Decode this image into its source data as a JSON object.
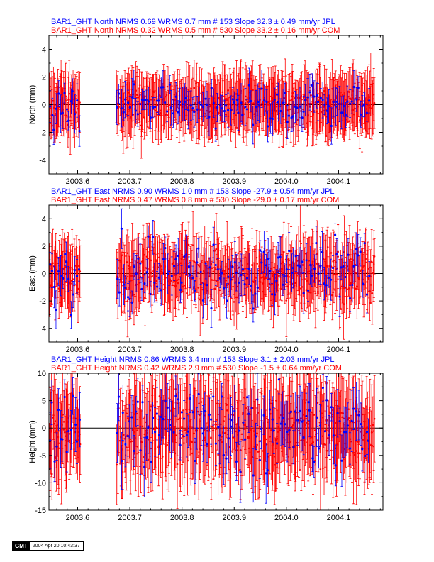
{
  "colors": {
    "jpl": "#0000ff",
    "com": "#ff0000",
    "axis": "#000000"
  },
  "stamp": {
    "logo": "GMT",
    "time": "2004 Apr 20 10:43:37"
  },
  "chart_data": [
    {
      "type": "scatter",
      "component": "north",
      "xlabel": "",
      "ylabel": "North (mm)",
      "xlim": [
        2003.545,
        2004.185
      ],
      "ylim": [
        -5,
        5
      ],
      "xticks": [
        2003.6,
        2003.7,
        2003.8,
        2003.9,
        2004.0,
        2004.1
      ],
      "xtick_labels": [
        "2003.6",
        "2003.7",
        "2003.8",
        "2003.9",
        "2004.0",
        "2004.1"
      ],
      "yticks": [
        -4,
        -2,
        0,
        2,
        4
      ],
      "ytick_labels": [
        "-4",
        "-2",
        "0",
        "2",
        "4"
      ],
      "titles": [
        {
          "text": "BAR1_GHT North NRMS 0.69 WRMS  0.7 mm # 153 Slope   32.3 ±  0.49 mm/yr JPL",
          "color": "#0000ff"
        },
        {
          "text": "BAR1_GHT North NRMS 0.32 WRMS  0.5 mm # 530 Slope   33.2 ±  0.16 mm/yr COM",
          "color": "#ff0000"
        }
      ],
      "series": [
        {
          "name": "JPL",
          "color": "#0000ff",
          "count": 153,
          "wrms": 0.7,
          "err": 1.0,
          "x_start": 2003.545,
          "x_end": 2004.16,
          "gaps": [
            [
              2003.605,
              2003.675
            ]
          ]
        },
        {
          "name": "COM",
          "color": "#ff0000",
          "count": 530,
          "wrms": 0.5,
          "err": 1.8,
          "x_start": 2003.545,
          "x_end": 2004.17,
          "gaps": [
            [
              2003.605,
              2003.675
            ]
          ]
        }
      ]
    },
    {
      "type": "scatter",
      "component": "east",
      "xlabel": "",
      "ylabel": "East (mm)",
      "xlim": [
        2003.545,
        2004.185
      ],
      "ylim": [
        -5,
        5
      ],
      "xticks": [
        2003.6,
        2003.7,
        2003.8,
        2003.9,
        2004.0,
        2004.1
      ],
      "xtick_labels": [
        "2003.6",
        "2003.7",
        "2003.8",
        "2003.9",
        "2004.0",
        "2004.1"
      ],
      "yticks": [
        -4,
        -2,
        0,
        2,
        4
      ],
      "ytick_labels": [
        "-4",
        "-2",
        "0",
        "2",
        "4"
      ],
      "titles": [
        {
          "text": "BAR1_GHT East NRMS 0.90 WRMS  1.0 mm # 153 Slope  -27.9 ±  0.54 mm/yr JPL",
          "color": "#0000ff"
        },
        {
          "text": "BAR1_GHT East NRMS 0.47 WRMS  0.8 mm # 530 Slope  -29.0 ±  0.17 mm/yr COM",
          "color": "#ff0000"
        }
      ],
      "series": [
        {
          "name": "JPL",
          "color": "#0000ff",
          "count": 153,
          "wrms": 1.0,
          "err": 1.1,
          "x_start": 2003.545,
          "x_end": 2004.16,
          "gaps": [
            [
              2003.605,
              2003.675
            ]
          ]
        },
        {
          "name": "COM",
          "color": "#ff0000",
          "count": 530,
          "wrms": 0.8,
          "err": 1.9,
          "x_start": 2003.545,
          "x_end": 2004.17,
          "gaps": [
            [
              2003.605,
              2003.675
            ]
          ]
        }
      ]
    },
    {
      "type": "scatter",
      "component": "height",
      "xlabel": "",
      "ylabel": "Height (mm)",
      "xlim": [
        2003.545,
        2004.185
      ],
      "ylim": [
        -15,
        10
      ],
      "xticks": [
        2003.6,
        2003.7,
        2003.8,
        2003.9,
        2004.0,
        2004.1
      ],
      "xtick_labels": [
        "2003.6",
        "2003.7",
        "2003.8",
        "2003.9",
        "2004.0",
        "2004.1"
      ],
      "yticks": [
        -15,
        -10,
        -5,
        0,
        5,
        10
      ],
      "ytick_labels": [
        "-15",
        "-10",
        "-5",
        "0",
        "5",
        "10"
      ],
      "titles": [
        {
          "text": "BAR1_GHT Height NRMS 0.86 WRMS  3.4 mm # 153 Slope    3.1 ±  2.03 mm/yr JPL",
          "color": "#0000ff"
        },
        {
          "text": "BAR1_GHT Height NRMS 0.42 WRMS  2.9 mm # 530 Slope   -1.5 ±  0.64 mm/yr COM",
          "color": "#ff0000"
        }
      ],
      "series": [
        {
          "name": "JPL",
          "color": "#0000ff",
          "count": 153,
          "wrms": 3.4,
          "err": 4.0,
          "x_start": 2003.545,
          "x_end": 2004.16,
          "gaps": [
            [
              2003.605,
              2003.675
            ]
          ]
        },
        {
          "name": "COM",
          "color": "#ff0000",
          "count": 530,
          "wrms": 2.9,
          "err": 7.0,
          "x_start": 2003.545,
          "x_end": 2004.17,
          "gaps": [
            [
              2003.605,
              2003.675
            ]
          ]
        }
      ]
    }
  ]
}
